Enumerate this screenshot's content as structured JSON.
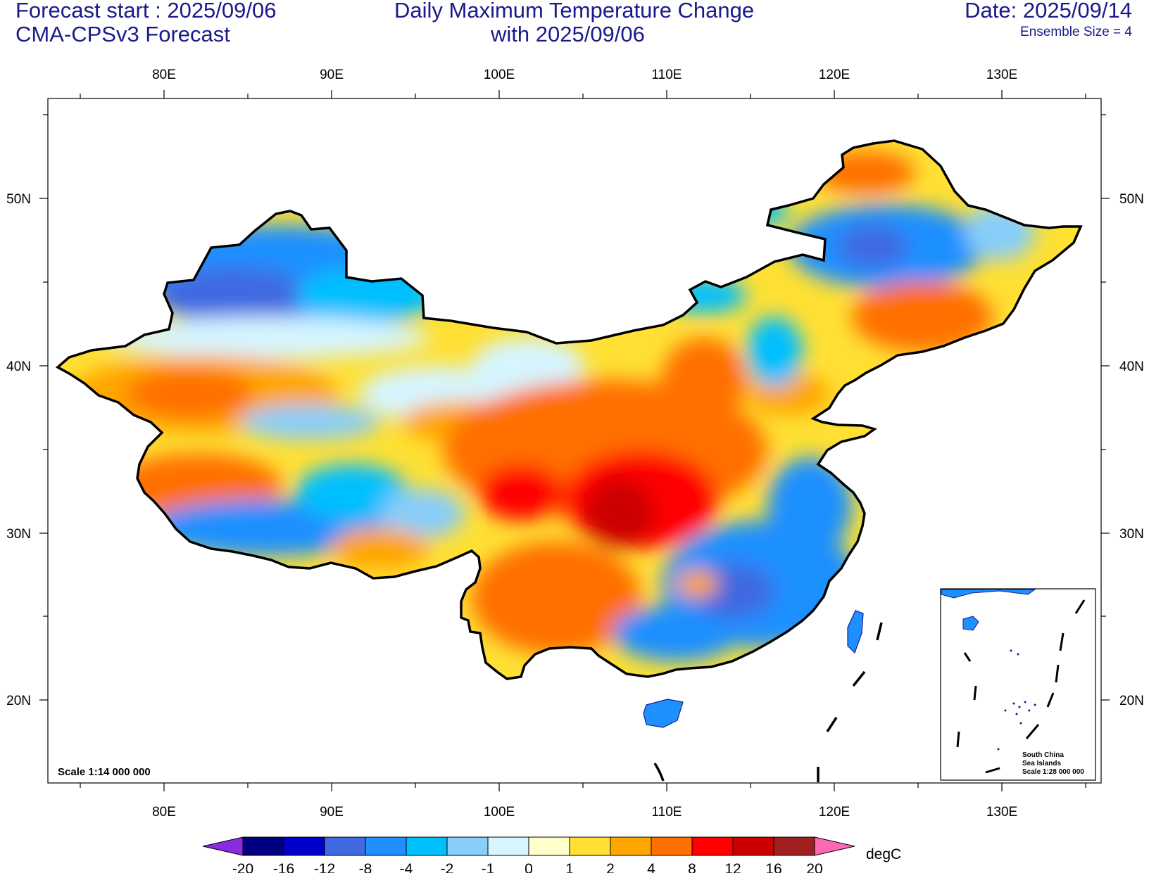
{
  "header": {
    "forecast_start": "Forecast start : 2025/09/06",
    "model": "CMA-CPSv3 Forecast",
    "title_line1": "Daily Maximum Temperature Change",
    "title_line2": "with 2025/09/06",
    "date": "Date: 2025/09/14",
    "ensemble": "Ensemble Size = 4"
  },
  "axes": {
    "lon_labels": [
      "80E",
      "90E",
      "100E",
      "110E",
      "120E",
      "130E"
    ],
    "lat_labels": [
      "50N",
      "40N",
      "30N",
      "20N"
    ],
    "lon_range": [
      73,
      136
    ],
    "lat_range": [
      15,
      56
    ]
  },
  "map": {
    "scale": "Scale 1:14 000 000",
    "inset": {
      "line1": "South China",
      "line2": "Sea Islands",
      "line3": "Scale 1:28 000 000"
    }
  },
  "colorbar": {
    "unit": "degC",
    "tick_labels": [
      "-20",
      "-16",
      "-12",
      "-8",
      "-4",
      "-2",
      "-1",
      "0",
      "1",
      "2",
      "4",
      "8",
      "12",
      "16",
      "20"
    ],
    "colors": [
      "#000080",
      "#0000cd",
      "#4169e1",
      "#1e90ff",
      "#00bfff",
      "#87cefa",
      "#d6f5ff",
      "#ffffcc",
      "#ffe033",
      "#ffa500",
      "#ff7000",
      "#ff0000",
      "#cc0000",
      "#a02020"
    ],
    "under_color": "#8a2be2",
    "over_color": "#ff69b4"
  }
}
